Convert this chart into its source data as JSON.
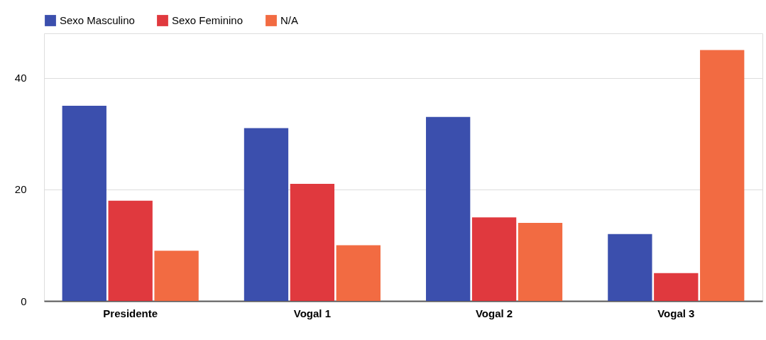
{
  "chart_data": {
    "type": "bar",
    "categories": [
      "Presidente",
      "Vogal 1",
      "Vogal 2",
      "Vogal 3"
    ],
    "series": [
      {
        "name": "Sexo Masculino",
        "color": "#3b4fad",
        "values": [
          35,
          31,
          33,
          12
        ]
      },
      {
        "name": "Sexo Feminino",
        "color": "#e0393e",
        "values": [
          18,
          21,
          15,
          5
        ]
      },
      {
        "name": "N/A",
        "color": "#f26b42",
        "values": [
          9,
          10,
          14,
          45
        ]
      }
    ],
    "ylim": [
      0,
      48
    ],
    "yticks": [
      0,
      20,
      40
    ],
    "grid": "y",
    "legend": "top left"
  }
}
